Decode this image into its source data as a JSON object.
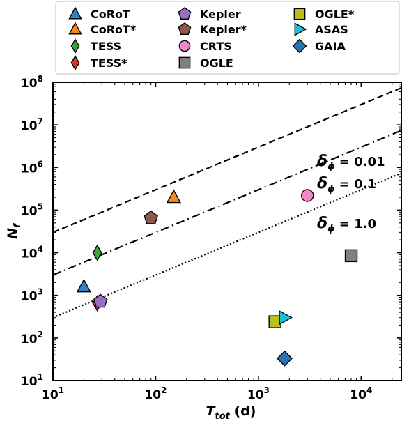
{
  "chart_data": {
    "type": "scatter",
    "xscale": "log",
    "yscale": "log",
    "xlim": [
      10,
      25000
    ],
    "ylim": [
      10,
      100000000
    ],
    "xlabel": {
      "main": "T",
      "sub": "tot",
      "unit": " (d)"
    },
    "ylabel": {
      "main": "N",
      "sub": "f"
    },
    "x_ticks": [
      {
        "value": 10,
        "base": "10",
        "exp": "1"
      },
      {
        "value": 100,
        "base": "10",
        "exp": "2"
      },
      {
        "value": 1000,
        "base": "10",
        "exp": "3"
      },
      {
        "value": 10000,
        "base": "10",
        "exp": "4"
      }
    ],
    "y_ticks": [
      {
        "value": 10,
        "base": "10",
        "exp": "1"
      },
      {
        "value": 100,
        "base": "10",
        "exp": "2"
      },
      {
        "value": 1000,
        "base": "10",
        "exp": "3"
      },
      {
        "value": 10000,
        "base": "10",
        "exp": "4"
      },
      {
        "value": 100000,
        "base": "10",
        "exp": "5"
      },
      {
        "value": 1000000,
        "base": "10",
        "exp": "6"
      },
      {
        "value": 10000000,
        "base": "10",
        "exp": "7"
      },
      {
        "value": 100000000,
        "base": "10",
        "exp": "8"
      }
    ],
    "series": [
      {
        "name": "CoRoT",
        "marker": "triangle-up",
        "color": "#2f83c7",
        "x": 20,
        "y": 1600
      },
      {
        "name": "CoRoT*",
        "marker": "triangle-up",
        "color": "#f28a1c",
        "x": 150,
        "y": 200000
      },
      {
        "name": "TESS",
        "marker": "diamond-thin",
        "color": "#35a63a",
        "x": 27,
        "y": 10000
      },
      {
        "name": "TESS*",
        "marker": "diamond-thin",
        "color": "#e0302a",
        "x": 27,
        "y": 650
      },
      {
        "name": "Kepler",
        "marker": "pentagon",
        "color": "#9a6fc2",
        "x": 29,
        "y": 720
      },
      {
        "name": "Kepler*",
        "marker": "pentagon",
        "color": "#8c5a4c",
        "x": 90,
        "y": 65000
      },
      {
        "name": "CRTS",
        "marker": "circle",
        "color": "#ee86c9",
        "x": 3000,
        "y": 220000
      },
      {
        "name": "OGLE",
        "marker": "square",
        "color": "#808080",
        "x": 8000,
        "y": 8500
      },
      {
        "name": "OGLE*",
        "marker": "square",
        "color": "#bcbd22",
        "x": 1450,
        "y": 240
      },
      {
        "name": "ASAS",
        "marker": "triangle-right",
        "color": "#18c0d8",
        "x": 1800,
        "y": 300
      },
      {
        "name": "GAIA",
        "marker": "diamond",
        "color": "#2a74b3",
        "x": 1800,
        "y": 33
      }
    ],
    "lines": [
      {
        "style": "dashed",
        "label_prefix": "δ",
        "label_sub": "ϕ",
        "label_value": " = 0.01",
        "y_at_10": 30000,
        "y_at_25000": 75000000
      },
      {
        "style": "dashdot",
        "label_prefix": "δ",
        "label_sub": "ϕ",
        "label_value": " = 0.1",
        "y_at_10": 3000,
        "y_at_25000": 7500000
      },
      {
        "style": "dotted",
        "label_prefix": "δ",
        "label_sub": "ϕ",
        "label_value": " = 1.0",
        "y_at_10": 300,
        "y_at_25000": 750000
      }
    ],
    "legend_position": "top, outside plot",
    "grid": false
  }
}
